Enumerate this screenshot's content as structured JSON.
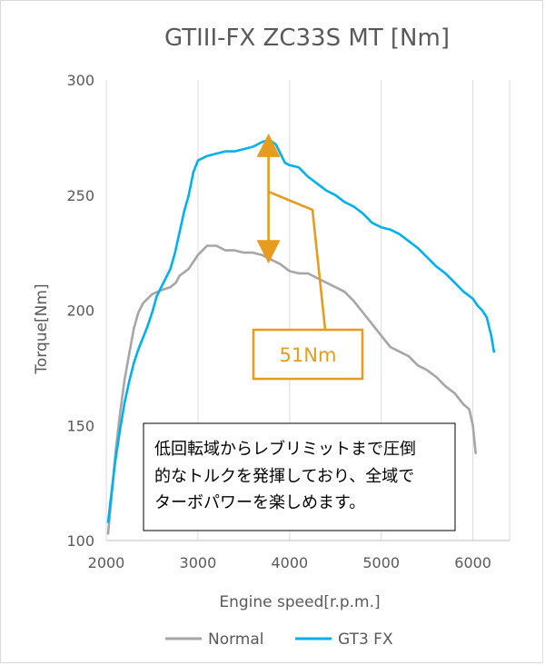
{
  "chart_data": {
    "type": "line",
    "title": "GTIII-FX ZC33S MT [Nm]",
    "xlabel": "Engine speed[r.p.m.]",
    "ylabel": "Torque[Nm]",
    "xlim": [
      2000,
      6400
    ],
    "ylim": [
      100,
      300
    ],
    "xticks": [
      "2000",
      "3000",
      "4000",
      "5000",
      "6000"
    ],
    "yticks": [
      "100",
      "150",
      "200",
      "250",
      "300"
    ],
    "grid": "vertical",
    "legend_position": "bottom",
    "colors": {
      "normal": "#a6a6a6",
      "gt3": "#00b0f0",
      "annotation": "#e69c1e",
      "axis_text": "#595959"
    },
    "series": [
      {
        "name": "Normal",
        "color": "#a6a6a6",
        "points": [
          [
            2020,
            103
          ],
          [
            2060,
            120
          ],
          [
            2100,
            138
          ],
          [
            2150,
            155
          ],
          [
            2200,
            170
          ],
          [
            2250,
            181
          ],
          [
            2300,
            192
          ],
          [
            2350,
            199
          ],
          [
            2400,
            203
          ],
          [
            2450,
            205
          ],
          [
            2500,
            207
          ],
          [
            2560,
            208
          ],
          [
            2620,
            209
          ],
          [
            2700,
            210
          ],
          [
            2760,
            212
          ],
          [
            2800,
            215
          ],
          [
            2900,
            218
          ],
          [
            3000,
            224
          ],
          [
            3100,
            228
          ],
          [
            3200,
            228
          ],
          [
            3300,
            226
          ],
          [
            3400,
            226
          ],
          [
            3500,
            225
          ],
          [
            3600,
            225
          ],
          [
            3700,
            224
          ],
          [
            3800,
            222
          ],
          [
            3900,
            220
          ],
          [
            4000,
            217
          ],
          [
            4100,
            216
          ],
          [
            4200,
            216
          ],
          [
            4300,
            214
          ],
          [
            4400,
            212
          ],
          [
            4500,
            210
          ],
          [
            4600,
            208
          ],
          [
            4700,
            204
          ],
          [
            4800,
            199
          ],
          [
            4900,
            194
          ],
          [
            5000,
            189
          ],
          [
            5100,
            184
          ],
          [
            5200,
            182
          ],
          [
            5300,
            180
          ],
          [
            5400,
            176
          ],
          [
            5500,
            174
          ],
          [
            5600,
            171
          ],
          [
            5700,
            167
          ],
          [
            5800,
            164
          ],
          [
            5900,
            159
          ],
          [
            5960,
            157
          ],
          [
            6000,
            150
          ],
          [
            6030,
            138
          ]
        ]
      },
      {
        "name": "GT3 FX",
        "color": "#00b0f0",
        "points": [
          [
            2020,
            108
          ],
          [
            2060,
            122
          ],
          [
            2100,
            135
          ],
          [
            2150,
            148
          ],
          [
            2200,
            160
          ],
          [
            2250,
            169
          ],
          [
            2300,
            177
          ],
          [
            2350,
            183
          ],
          [
            2400,
            188
          ],
          [
            2450,
            193
          ],
          [
            2500,
            199
          ],
          [
            2550,
            206
          ],
          [
            2600,
            210
          ],
          [
            2650,
            214
          ],
          [
            2700,
            218
          ],
          [
            2750,
            225
          ],
          [
            2800,
            234
          ],
          [
            2850,
            243
          ],
          [
            2900,
            250
          ],
          [
            2950,
            260
          ],
          [
            3000,
            265
          ],
          [
            3100,
            267
          ],
          [
            3200,
            268
          ],
          [
            3300,
            269
          ],
          [
            3400,
            269
          ],
          [
            3500,
            270
          ],
          [
            3600,
            271
          ],
          [
            3700,
            273
          ],
          [
            3780,
            274
          ],
          [
            3850,
            272
          ],
          [
            3900,
            268
          ],
          [
            3950,
            264
          ],
          [
            4000,
            263
          ],
          [
            4100,
            262
          ],
          [
            4200,
            258
          ],
          [
            4300,
            255
          ],
          [
            4400,
            252
          ],
          [
            4500,
            250
          ],
          [
            4600,
            247
          ],
          [
            4700,
            245
          ],
          [
            4800,
            242
          ],
          [
            4900,
            238
          ],
          [
            5000,
            236
          ],
          [
            5100,
            235
          ],
          [
            5200,
            233
          ],
          [
            5300,
            230
          ],
          [
            5400,
            227
          ],
          [
            5500,
            223
          ],
          [
            5600,
            219
          ],
          [
            5700,
            216
          ],
          [
            5800,
            212
          ],
          [
            5900,
            208
          ],
          [
            6000,
            205
          ],
          [
            6050,
            202
          ],
          [
            6100,
            200
          ],
          [
            6150,
            197
          ],
          [
            6200,
            189
          ],
          [
            6230,
            182
          ]
        ]
      }
    ],
    "annotation": {
      "label": "51Nm",
      "x": 3770,
      "y_top": 274,
      "y_bottom": 223
    },
    "note": {
      "lines": [
        "低回転域からレブリミットまで圧倒",
        "的なトルクを発揮しており、全域で",
        "ターボパワーを楽しめます。"
      ]
    }
  }
}
